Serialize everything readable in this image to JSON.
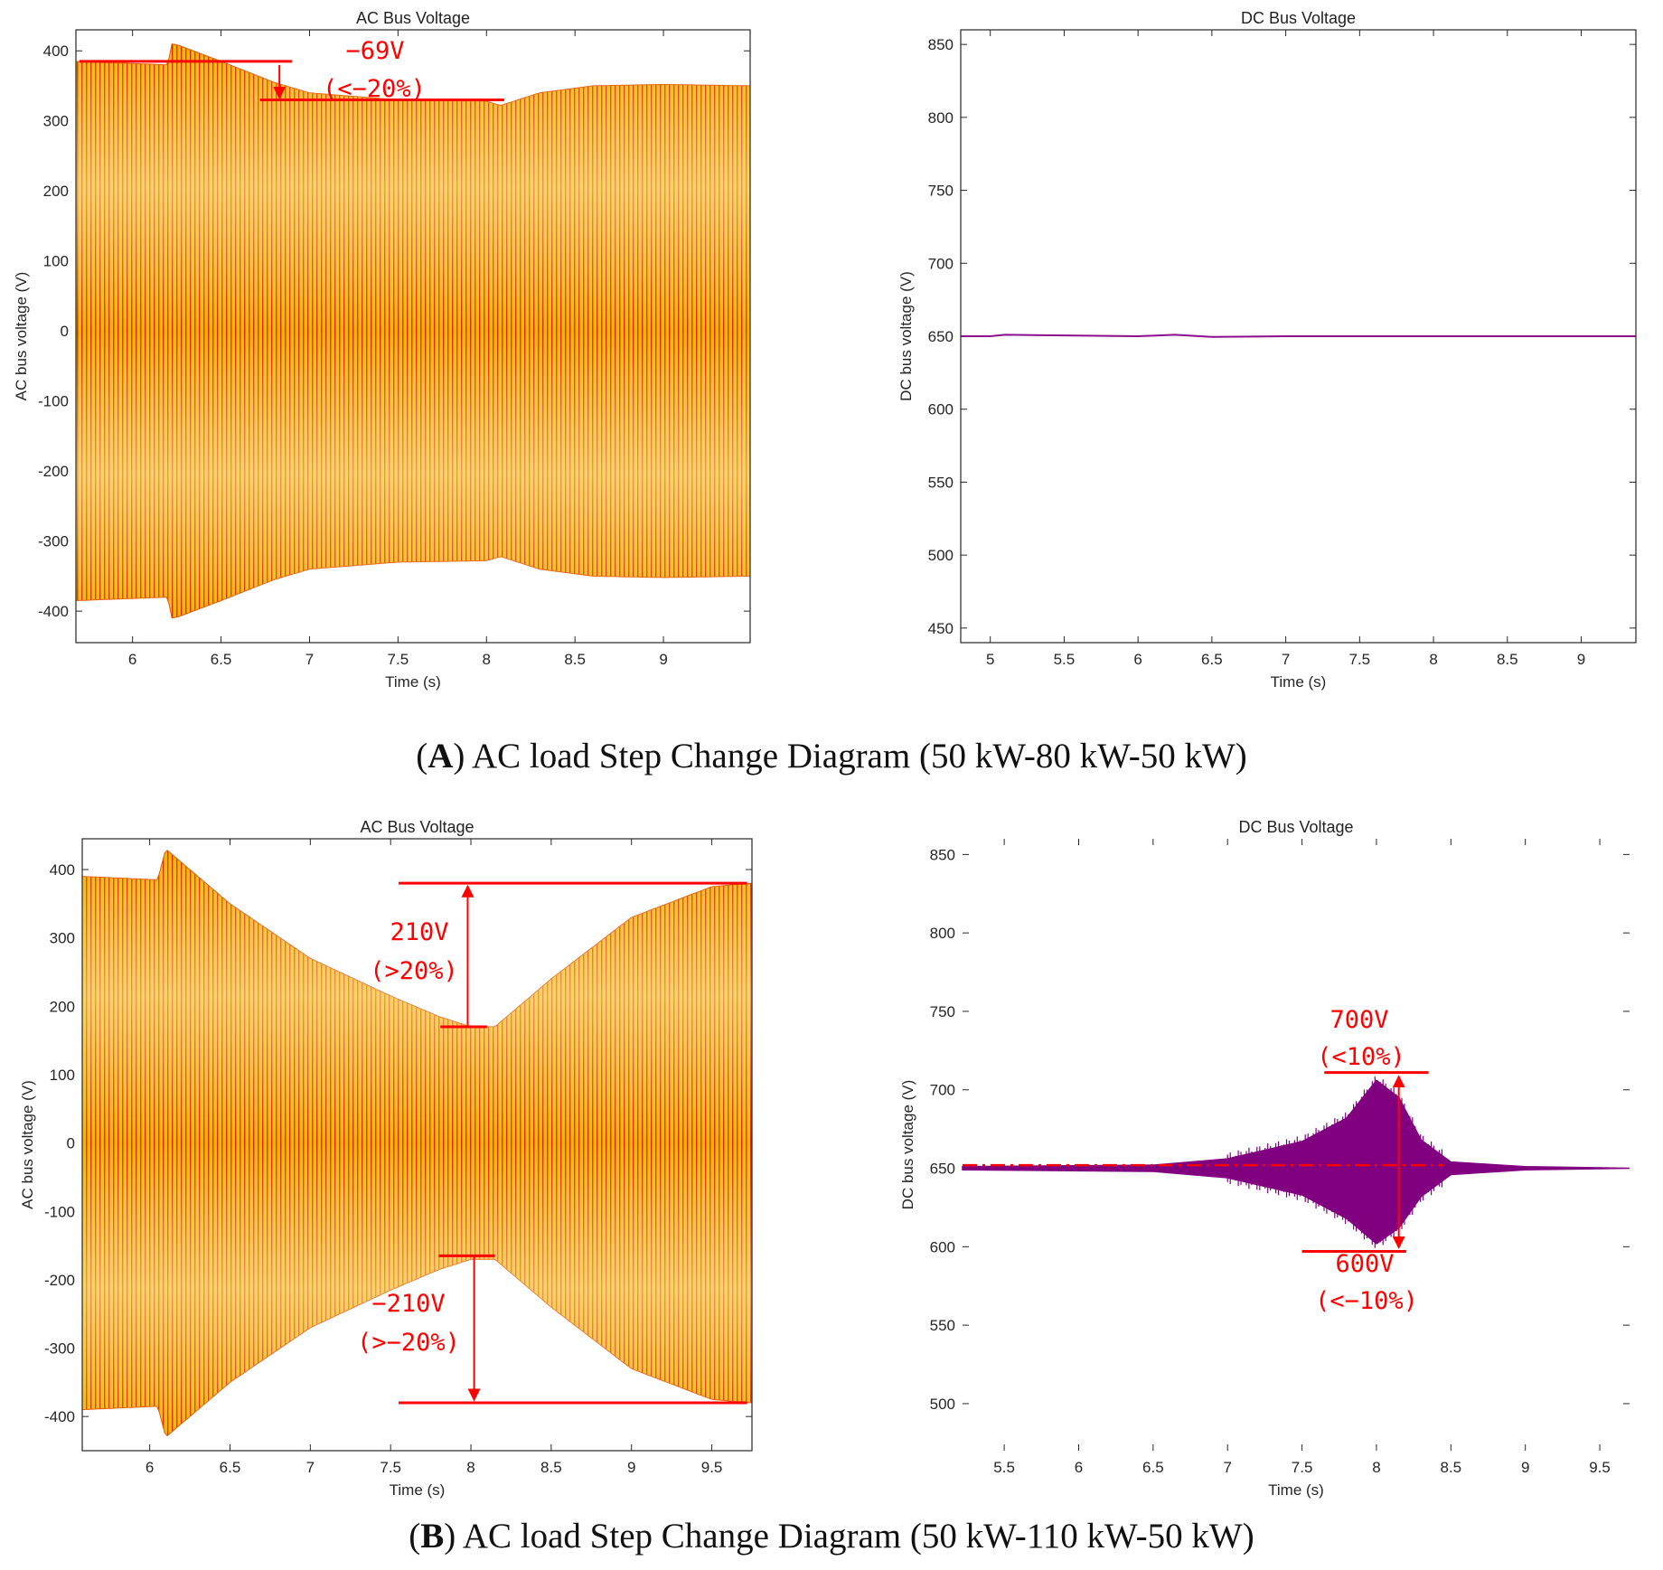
{
  "chart_data": [
    {
      "id": "A_ac",
      "type": "line",
      "title": "AC Bus Voltage",
      "xlabel": "Time (s)",
      "ylabel": "AC bus voltage (V)",
      "xlim": [
        5.68,
        9.49
      ],
      "ylim": [
        -445,
        430
      ],
      "xticks": [
        6,
        6.5,
        7,
        7.5,
        8,
        8.5,
        9
      ],
      "yticks": [
        400,
        300,
        200,
        100,
        0,
        -100,
        -200,
        -300,
        -400
      ],
      "series": [
        {
          "name": "AC bus voltage envelope",
          "color": "#f5a800",
          "x": [
            5.68,
            6.2,
            6.22,
            6.26,
            6.5,
            6.8,
            7.0,
            7.5,
            8.0,
            8.08,
            8.3,
            8.6,
            9.0,
            9.49
          ],
          "y": [
            385,
            380,
            410,
            408,
            385,
            355,
            340,
            330,
            328,
            322,
            340,
            350,
            352,
            350
          ]
        }
      ],
      "annotations": [
        {
          "text": "−69V",
          "line": "value"
        },
        {
          "text": "(<−20%)",
          "line": "percent"
        }
      ]
    },
    {
      "id": "A_dc",
      "type": "line",
      "title": "DC Bus Voltage",
      "xlabel": "Time (s)",
      "ylabel": "DC bus voltage (V)",
      "xlim": [
        4.8,
        9.37
      ],
      "ylim": [
        440,
        860
      ],
      "xticks": [
        5,
        5.5,
        6,
        6.5,
        7,
        7.5,
        8,
        8.5,
        9
      ],
      "yticks": [
        850,
        800,
        750,
        700,
        650,
        600,
        550,
        500,
        450
      ],
      "series": [
        {
          "name": "DC bus voltage",
          "color": "#8b0d8b",
          "x": [
            4.8,
            5.0,
            5.1,
            6.0,
            6.25,
            6.5,
            7.0,
            8.0,
            9.0,
            9.37
          ],
          "y": [
            650,
            650,
            651,
            650,
            651,
            649.5,
            650,
            650,
            650,
            650
          ]
        }
      ]
    },
    {
      "id": "B_ac",
      "type": "line",
      "title": "AC Bus Voltage",
      "xlabel": "Time (s)",
      "ylabel": "AC bus voltage (V)",
      "xlim": [
        5.58,
        9.75
      ],
      "ylim": [
        -450,
        445
      ],
      "xticks": [
        6,
        6.5,
        7,
        7.5,
        8,
        8.5,
        9,
        9.5
      ],
      "yticks": [
        400,
        300,
        200,
        100,
        0,
        -100,
        -200,
        -300,
        -400
      ],
      "series": [
        {
          "name": "AC bus voltage envelope",
          "color": "#f5a800",
          "x": [
            5.58,
            6.05,
            6.1,
            6.5,
            7.0,
            7.5,
            7.8,
            8.0,
            8.15,
            8.5,
            9.0,
            9.5,
            9.75
          ],
          "y": [
            390,
            385,
            430,
            350,
            270,
            215,
            185,
            170,
            170,
            240,
            330,
            375,
            380
          ]
        }
      ],
      "annotations": [
        {
          "text": "210V",
          "line": "upper value"
        },
        {
          "text": "(>20%)",
          "line": "upper percent"
        },
        {
          "text": "−210V",
          "line": "lower value"
        },
        {
          "text": "(>−20%)",
          "line": "lower percent"
        }
      ]
    },
    {
      "id": "B_dc",
      "type": "line",
      "title": "DC Bus Voltage",
      "xlabel": "Time (s)",
      "ylabel": "DC bus voltage (V)",
      "xlim": [
        5.22,
        9.7
      ],
      "ylim": [
        470,
        860
      ],
      "xticks": [
        5.5,
        6,
        6.5,
        7,
        7.5,
        8,
        8.5,
        9,
        9.5
      ],
      "yticks": [
        850,
        800,
        750,
        700,
        650,
        600,
        550,
        500
      ],
      "reference_line": 652,
      "series": [
        {
          "name": "DC bus voltage upper envelope",
          "color": "#800080",
          "x": [
            5.22,
            6.5,
            7.0,
            7.5,
            7.8,
            8.0,
            8.15,
            8.3,
            8.5,
            9.0,
            9.7
          ],
          "y": [
            651,
            652,
            656,
            667,
            682,
            706,
            695,
            668,
            654,
            651,
            650
          ]
        },
        {
          "name": "DC bus voltage lower envelope",
          "color": "#800080",
          "x": [
            5.22,
            6.5,
            7.0,
            7.5,
            7.8,
            8.0,
            8.15,
            8.3,
            8.5,
            9.0,
            9.7
          ],
          "y": [
            649,
            648,
            644,
            633,
            618,
            602,
            612,
            632,
            646,
            649,
            650
          ]
        }
      ],
      "annotations": [
        {
          "text": "700V",
          "line": "upper value"
        },
        {
          "text": "(<10%)",
          "line": "upper percent"
        },
        {
          "text": "600V",
          "line": "lower value"
        },
        {
          "text": "(<−10%)",
          "line": "lower percent"
        }
      ]
    }
  ],
  "captions": {
    "a": {
      "label": "A",
      "text": "AC load Step Change Diagram (50 kW-80 kW-50 kW)"
    },
    "b": {
      "label": "B",
      "text": "AC load Step Change Diagram (50 kW-110 kW-50 kW)"
    }
  },
  "colors": {
    "ac_fill": "#f5a800",
    "ac_stripe": "#d11a00",
    "dc_line": "#800080",
    "annotation": "#ff0000"
  }
}
